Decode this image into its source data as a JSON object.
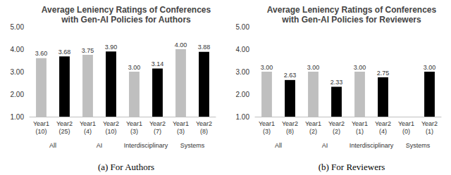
{
  "chart_data": [
    {
      "type": "bar",
      "title": "Average Leniency Ratings of Conferences\nwith Gen-AI Policies for Authors",
      "caption": "(a) For Authors",
      "categories": [
        "Year1\n(10)",
        "Year2\n(25)",
        "Year1\n(4)",
        "Year2\n(10)",
        "Year1\n(3)",
        "Year2\n(7)",
        "Year1\n(3)",
        "Year2\n(8)"
      ],
      "groups": [
        "All",
        "AI",
        "Interdisciplinary",
        "Systems"
      ],
      "values": [
        3.6,
        3.68,
        3.75,
        3.9,
        3.0,
        3.14,
        4.0,
        3.88
      ],
      "value_labels": [
        "3.60",
        "3.68",
        "3.75",
        "3.90",
        "3.00",
        "3.14",
        "4.00",
        "3.88"
      ],
      "colors": [
        "#bfbfbf",
        "#000000",
        "#bfbfbf",
        "#000000",
        "#bfbfbf",
        "#000000",
        "#bfbfbf",
        "#000000"
      ],
      "ylim": [
        1,
        5
      ],
      "yticks": [
        {
          "value": 1,
          "label": "1.00"
        },
        {
          "value": 2,
          "label": "2.00"
        },
        {
          "value": 3,
          "label": "3.00"
        },
        {
          "value": 4,
          "label": "4.00"
        },
        {
          "value": 5,
          "label": "5.00"
        }
      ],
      "grid": false,
      "data_labels": true
    },
    {
      "type": "bar",
      "title": "Average Leniency Ratings of Conferences\nwith Gen-AI Policies for Reviewers",
      "caption": "(b) For Reviewers",
      "categories": [
        "Year1\n(3)",
        "Year2\n(8)",
        "Year1\n(2)",
        "Year2\n(2)",
        "Year1\n(1)",
        "Year2\n(4)",
        "Year1\n(0)",
        "Year2\n(1)"
      ],
      "groups": [
        "All",
        "AI",
        "Interdisciplinary",
        "Systems"
      ],
      "values": [
        3.0,
        2.63,
        3.0,
        2.33,
        3.0,
        2.75,
        null,
        3.0
      ],
      "value_labels": [
        "3.00",
        "2.63",
        "3.00",
        "2.33",
        "3.00",
        "2.75",
        null,
        "3.00"
      ],
      "colors": [
        "#bfbfbf",
        "#000000",
        "#bfbfbf",
        "#000000",
        "#bfbfbf",
        "#000000",
        "#bfbfbf",
        "#000000"
      ],
      "ylim": [
        1,
        5
      ],
      "yticks": [
        {
          "value": 1,
          "label": "1.00"
        },
        {
          "value": 2,
          "label": "2.00"
        },
        {
          "value": 3,
          "label": "3.00"
        },
        {
          "value": 4,
          "label": "4.00"
        },
        {
          "value": 5,
          "label": "5.00"
        }
      ],
      "grid": false,
      "data_labels": true
    }
  ]
}
